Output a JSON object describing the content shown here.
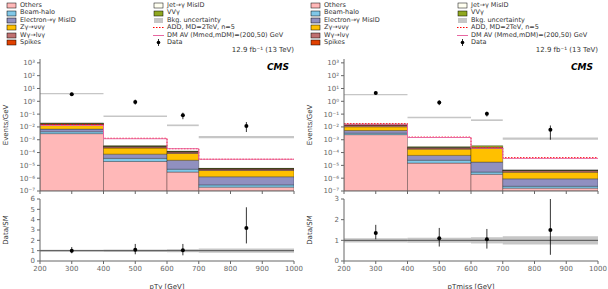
{
  "chart_data": [
    {
      "type": "histogram",
      "title": "12.9 fb⁻¹ (13 TeV)",
      "annotations": [
        "CMS"
      ],
      "ylabel": "Events/GeV",
      "bins": [
        200,
        400,
        600,
        700,
        1000
      ],
      "x": [
        300,
        500,
        650,
        850
      ],
      "stacked": true,
      "log": "y",
      "grid": false,
      "legend": "top",
      "tick_labels": "y",
      "xlim": [
        200,
        1000
      ],
      "xticks": [
        200,
        300,
        400,
        500,
        600,
        700,
        800,
        900,
        1000
      ],
      "ylim": [
        1e-07,
        2000
      ],
      "yticks": [
        {
          "value": 1e-07,
          "label": "10⁻⁷"
        },
        {
          "value": 1e-06,
          "label": "10⁻⁶"
        },
        {
          "value": 1e-05,
          "label": "10⁻⁵"
        },
        {
          "value": 0.0001,
          "label": "10⁻⁴"
        },
        {
          "value": 0.001,
          "label": "10⁻³"
        },
        {
          "value": 0.01,
          "label": "10⁻²"
        },
        {
          "value": 0.1,
          "label": "10⁻¹"
        },
        {
          "value": 1,
          "label": "10⁰"
        },
        {
          "value": 10,
          "label": "10¹"
        },
        {
          "value": 100,
          "label": "10²"
        },
        {
          "value": 1000,
          "label": "10³"
        }
      ],
      "series": [
        {
          "name": "Others",
          "type": "bar",
          "color": "#FFB8B8",
          "values": [
            0.003,
            2e-05,
            3e-06,
            2e-07
          ]
        },
        {
          "name": "Beam-halo",
          "type": "bar",
          "color": "#80C8E8",
          "values": [
            0.00125,
            1.5e-05,
            2e-06,
            1e-07
          ]
        },
        {
          "name": "Electron→γ MisID",
          "type": "bar",
          "color": "#9090C0",
          "values": [
            0.0025,
            4e-05,
            2e-05,
            1e-06
          ]
        },
        {
          "name": "Zγ→ννγ",
          "type": "bar",
          "color": "#FFC000",
          "values": [
            0.006,
            0.00015,
            6e-05,
            2.666666666666667e-06
          ]
        },
        {
          "name": "Wγ→lνγ",
          "type": "bar",
          "color": "#C07070",
          "values": [
            0.004,
            6e-05,
            3e-05,
            1.3333333333333332e-06
          ]
        },
        {
          "name": "Spikes",
          "type": "bar",
          "color": "#E04000",
          "values": [
            0.00075,
            1e-05,
            1e-06,
            6.666666666666667e-08
          ]
        },
        {
          "name": "Jet→γ MisID",
          "type": "bar",
          "color": "#FFFFF0",
          "values": [
            0.001,
            1.5e-05,
            3e-06,
            1.6666666666666668e-07
          ]
        },
        {
          "name": "VVγ",
          "type": "bar",
          "color": "#90A820",
          "values": [
            0.002,
            3e-05,
            1e-05,
            3.3333333333333335e-07
          ]
        },
        {
          "name": "Bkg. uncertainty",
          "type": "band",
          "color": "gray",
          "lower": [
            3.555,
            0.06028,
            0.011475,
            0.00132
          ],
          "upper": [
            4.345,
            0.07672,
            0.015525,
            0.00198
          ]
        },
        {
          "name": "ADD, MD=2TeV, n=5",
          "type": "line",
          "color": "red",
          "line_style": "dotted",
          "values": [
            0.015,
            0.0013,
            0.0002,
            3e-05
          ]
        },
        {
          "name": "DM AV (Mmed,mDM)=(200,50) GeV",
          "type": "line",
          "color": "#E868A2",
          "line_style": "solid",
          "values": [
            0.013,
            0.0012,
            0.0002,
            3e-05
          ]
        },
        {
          "name": "Data",
          "type": "scatter",
          "color": "black",
          "marker": "circle",
          "values": [
            3.5,
            0.9,
            0.08,
            0.012
          ],
          "err_lo": [
            0.8,
            0.35,
            0.04,
            0.008
          ],
          "err_hi": [
            1.2,
            0.45,
            0.05,
            0.012
          ]
        }
      ]
    },
    {
      "type": "scatter",
      "xlabel": "pTγ [GeV]",
      "ylabel": "Data/SM",
      "bins": [
        200,
        400,
        600,
        700,
        1000
      ],
      "x": [
        300,
        500,
        650,
        850
      ],
      "grid": false,
      "xlim": [
        200,
        1000
      ],
      "xticks": [
        200,
        300,
        400,
        500,
        600,
        700,
        800,
        900,
        1000
      ],
      "ylim": [
        0,
        6
      ],
      "yticks": [
        0,
        1,
        2,
        3,
        4,
        5,
        6
      ],
      "reference_line": 1,
      "series": [
        {
          "type": "band",
          "color": "gray",
          "lower": [
            0.9,
            0.88,
            0.85,
            0.8
          ],
          "upper": [
            1.1,
            1.12,
            1.15,
            1.2
          ]
        },
        {
          "type": "scatter",
          "color": "black",
          "marker": "circle",
          "values": [
            1.0,
            1.1,
            1.05,
            3.2
          ],
          "err_lo": [
            0.25,
            0.45,
            0.5,
            1.5
          ],
          "err_hi": [
            0.35,
            0.55,
            0.6,
            2.0
          ]
        }
      ]
    },
    {
      "type": "histogram",
      "title": "12.9 fb⁻¹ (13 TeV)",
      "annotations": [
        "CMS"
      ],
      "ylabel": "Events/GeV",
      "bins": [
        200,
        400,
        600,
        700,
        1000
      ],
      "x": [
        300,
        500,
        650,
        850
      ],
      "stacked": true,
      "log": "y",
      "grid": false,
      "legend": "top",
      "tick_labels": "y",
      "xlim": [
        200,
        1000
      ],
      "xticks": [
        200,
        300,
        400,
        500,
        600,
        700,
        800,
        900,
        1000
      ],
      "ylim": [
        1e-07,
        2000
      ],
      "yticks": [
        {
          "value": 1e-07,
          "label": "10⁻⁷"
        },
        {
          "value": 1e-06,
          "label": "10⁻⁶"
        },
        {
          "value": 1e-05,
          "label": "10⁻⁵"
        },
        {
          "value": 0.0001,
          "label": "10⁻⁴"
        },
        {
          "value": 0.001,
          "label": "10⁻³"
        },
        {
          "value": 0.01,
          "label": "10⁻²"
        },
        {
          "value": 0.1,
          "label": "10⁻¹"
        },
        {
          "value": 1,
          "label": "10⁰"
        },
        {
          "value": 10,
          "label": "10¹"
        },
        {
          "value": 100,
          "label": "10²"
        },
        {
          "value": 1000,
          "label": "10³"
        }
      ],
      "series": [
        {
          "name": "Others",
          "type": "bar",
          "color": "#FFB8B8",
          "values": [
            0.0025,
            1.5e-05,
            2e-06,
            1.6666666666666668e-07
          ]
        },
        {
          "name": "Beam-halo",
          "type": "bar",
          "color": "#80C8E8",
          "values": [
            0.00075,
            1e-05,
            1e-06,
            6.666666666666667e-08
          ]
        },
        {
          "name": "Electron→γ MisID",
          "type": "bar",
          "color": "#9090C0",
          "values": [
            0.002,
            3.5e-05,
            1.5e-05,
            6.666666666666667e-07
          ]
        },
        {
          "name": "Zγ→ννγ",
          "type": "bar",
          "color": "#FFC000",
          "values": [
            0.005,
            0.000125,
            0.0002,
            2e-06
          ]
        },
        {
          "name": "Wγ→lνγ",
          "type": "bar",
          "color": "#C07070",
          "values": [
            0.0035,
            5e-05,
            2e-05,
            1e-06
          ]
        },
        {
          "name": "Spikes",
          "type": "bar",
          "color": "#E04000",
          "values": [
            0.0006,
            7.5e-06,
            1e-06,
            6.666666666666667e-08
          ]
        },
        {
          "name": "Jet→γ MisID",
          "type": "bar",
          "color": "#FFFFF0",
          "values": [
            0.00075,
            1.25e-05,
            3e-06,
            1.3333333333333334e-07
          ]
        },
        {
          "name": "VVγ",
          "type": "bar",
          "color": "#90A820",
          "values": [
            0.00175,
            2.5e-05,
            0.0001,
            3.3333333333333335e-07
          ]
        },
        {
          "name": "Bkg. uncertainty",
          "type": "band",
          "color": "gray",
          "lower": [
            3.033,
            0.0484,
            0.0289,
            0.001016
          ],
          "upper": [
            3.707,
            0.0616,
            0.0391,
            0.001524
          ]
        },
        {
          "name": "ADD, MD=2TeV, n=5",
          "type": "line",
          "color": "red",
          "line_style": "dotted",
          "values": [
            0.018,
            0.0016,
            0.00025,
            4e-05
          ]
        },
        {
          "name": "DM AV (Mmed,mDM)=(200,50) GeV",
          "type": "line",
          "color": "#E868A2",
          "line_style": "solid",
          "values": [
            0.016,
            0.0015,
            0.00022,
            3.5e-05
          ]
        },
        {
          "name": "Data",
          "type": "scatter",
          "color": "black",
          "marker": "circle",
          "values": [
            4.5,
            0.8,
            0.105,
            0.006
          ],
          "err_lo": [
            1.0,
            0.3,
            0.04,
            0.005
          ],
          "err_hi": [
            1.5,
            0.4,
            0.05,
            0.007
          ]
        }
      ]
    },
    {
      "type": "scatter",
      "xlabel": "pTmiss [GeV]",
      "ylabel": "Data/SM",
      "bins": [
        200,
        400,
        600,
        700,
        1000
      ],
      "x": [
        300,
        500,
        650,
        850
      ],
      "grid": false,
      "xlim": [
        200,
        1000
      ],
      "xticks": [
        200,
        300,
        400,
        500,
        600,
        700,
        800,
        900,
        1000
      ],
      "ylim": [
        0,
        3
      ],
      "yticks": [
        0,
        1,
        2,
        3
      ],
      "reference_line": 1,
      "series": [
        {
          "type": "band",
          "color": "gray",
          "lower": [
            0.9,
            0.88,
            0.85,
            0.8
          ],
          "upper": [
            1.1,
            1.12,
            1.15,
            1.2
          ]
        },
        {
          "type": "scatter",
          "color": "black",
          "marker": "circle",
          "values": [
            1.35,
            1.1,
            1.05,
            1.5
          ],
          "err_lo": [
            0.3,
            0.4,
            0.45,
            1.2
          ],
          "err_hi": [
            0.4,
            0.5,
            0.5,
            1.5
          ]
        }
      ]
    }
  ]
}
